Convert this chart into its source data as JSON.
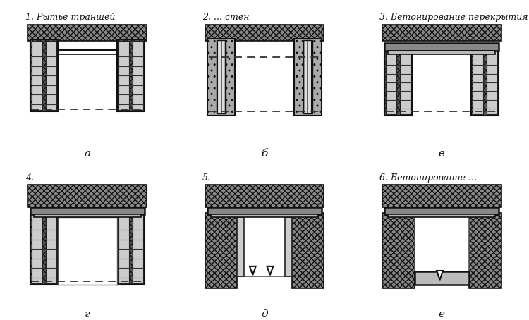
{
  "titles": [
    "1. Рытье траншей",
    "2. ... стен",
    "3. Бетонирование перекрытия",
    "4.",
    "5.",
    "6. Бетонирование ..."
  ],
  "sublabels": [
    "а",
    "б",
    "в",
    "г",
    "д",
    "е"
  ],
  "bg_color": "#ffffff",
  "text_color": "#111111",
  "title_fontsize": 9,
  "label_fontsize": 11,
  "soil_fc": "#aaaaaa",
  "soil_hatch": "xxxx",
  "wall_fc": "#888888",
  "wall_hatch": "xxxx",
  "slab_fc": "#999999",
  "inner_fc": "#dddddd"
}
